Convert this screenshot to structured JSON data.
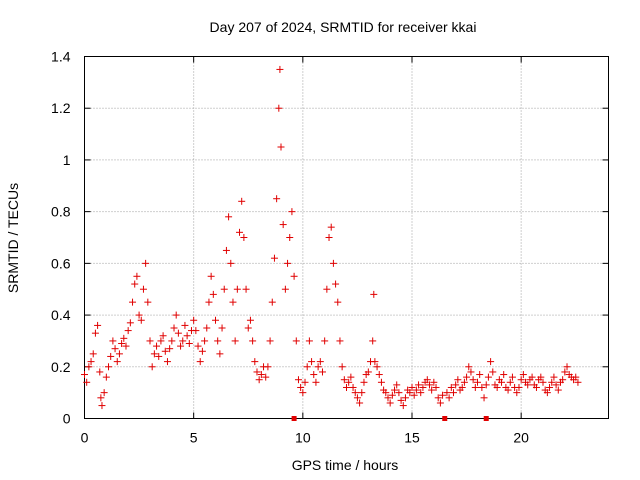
{
  "chart_data": {
    "type": "scatter",
    "title": "Day 207 of 2024, SRMTID for receiver kkai",
    "xlabel": "GPS time / hours",
    "ylabel": "SRMTID / TECUs",
    "xlim": [
      0,
      24
    ],
    "ylim": [
      0,
      1.4
    ],
    "xticks": [
      0,
      5,
      10,
      15,
      20
    ],
    "xtick_labels": [
      "0",
      "5",
      "10",
      "15",
      "20"
    ],
    "yticks": [
      0,
      0.2,
      0.4,
      0.6,
      0.8,
      1.0,
      1.2,
      1.4
    ],
    "ytick_labels": [
      "0",
      "0.2",
      "0.4",
      "0.6",
      "0.8",
      "1",
      "1.2",
      "1.4"
    ],
    "grid": true,
    "marker": "+",
    "color": "#e00000",
    "series": [
      {
        "name": "SRMTID",
        "points": [
          [
            0.0,
            0.17
          ],
          [
            0.1,
            0.14
          ],
          [
            0.2,
            0.2
          ],
          [
            0.3,
            0.22
          ],
          [
            0.4,
            0.25
          ],
          [
            0.5,
            0.33
          ],
          [
            0.6,
            0.36
          ],
          [
            0.7,
            0.18
          ],
          [
            0.75,
            0.08
          ],
          [
            0.8,
            0.05
          ],
          [
            0.9,
            0.1
          ],
          [
            1.0,
            0.16
          ],
          [
            1.1,
            0.2
          ],
          [
            1.2,
            0.24
          ],
          [
            1.3,
            0.3
          ],
          [
            1.4,
            0.27
          ],
          [
            1.5,
            0.22
          ],
          [
            1.6,
            0.25
          ],
          [
            1.7,
            0.29
          ],
          [
            1.8,
            0.31
          ],
          [
            1.9,
            0.28
          ],
          [
            2.0,
            0.34
          ],
          [
            2.1,
            0.37
          ],
          [
            2.2,
            0.45
          ],
          [
            2.3,
            0.52
          ],
          [
            2.4,
            0.55
          ],
          [
            2.5,
            0.4
          ],
          [
            2.6,
            0.38
          ],
          [
            2.7,
            0.5
          ],
          [
            2.8,
            0.6
          ],
          [
            2.9,
            0.45
          ],
          [
            3.0,
            0.3
          ],
          [
            3.1,
            0.2
          ],
          [
            3.2,
            0.25
          ],
          [
            3.3,
            0.28
          ],
          [
            3.4,
            0.24
          ],
          [
            3.5,
            0.3
          ],
          [
            3.6,
            0.32
          ],
          [
            3.7,
            0.26
          ],
          [
            3.8,
            0.22
          ],
          [
            3.9,
            0.27
          ],
          [
            4.0,
            0.3
          ],
          [
            4.1,
            0.35
          ],
          [
            4.2,
            0.4
          ],
          [
            4.3,
            0.33
          ],
          [
            4.4,
            0.28
          ],
          [
            4.5,
            0.3
          ],
          [
            4.6,
            0.36
          ],
          [
            4.7,
            0.32
          ],
          [
            4.8,
            0.29
          ],
          [
            4.9,
            0.34
          ],
          [
            5.0,
            0.38
          ],
          [
            5.1,
            0.34
          ],
          [
            5.2,
            0.28
          ],
          [
            5.3,
            0.22
          ],
          [
            5.4,
            0.26
          ],
          [
            5.5,
            0.3
          ],
          [
            5.6,
            0.35
          ],
          [
            5.7,
            0.45
          ],
          [
            5.8,
            0.55
          ],
          [
            5.9,
            0.48
          ],
          [
            6.0,
            0.38
          ],
          [
            6.1,
            0.3
          ],
          [
            6.2,
            0.25
          ],
          [
            6.3,
            0.35
          ],
          [
            6.4,
            0.5
          ],
          [
            6.5,
            0.65
          ],
          [
            6.6,
            0.78
          ],
          [
            6.7,
            0.6
          ],
          [
            6.8,
            0.45
          ],
          [
            6.9,
            0.3
          ],
          [
            7.0,
            0.5
          ],
          [
            7.1,
            0.72
          ],
          [
            7.2,
            0.84
          ],
          [
            7.3,
            0.7
          ],
          [
            7.4,
            0.5
          ],
          [
            7.5,
            0.35
          ],
          [
            7.6,
            0.38
          ],
          [
            7.7,
            0.3
          ],
          [
            7.8,
            0.22
          ],
          [
            7.9,
            0.18
          ],
          [
            8.0,
            0.15
          ],
          [
            8.1,
            0.17
          ],
          [
            8.2,
            0.2
          ],
          [
            8.3,
            0.16
          ],
          [
            8.4,
            0.2
          ],
          [
            8.5,
            0.3
          ],
          [
            8.6,
            0.45
          ],
          [
            8.7,
            0.62
          ],
          [
            8.8,
            0.85
          ],
          [
            8.9,
            1.2
          ],
          [
            8.95,
            1.35
          ],
          [
            9.0,
            1.05
          ],
          [
            9.1,
            0.75
          ],
          [
            9.2,
            0.5
          ],
          [
            9.3,
            0.6
          ],
          [
            9.4,
            0.7
          ],
          [
            9.5,
            0.8
          ],
          [
            9.6,
            0.55
          ],
          [
            9.7,
            0.3
          ],
          [
            9.8,
            0.15
          ],
          [
            9.9,
            0.12
          ],
          [
            10.0,
            0.1
          ],
          [
            10.1,
            0.14
          ],
          [
            10.2,
            0.2
          ],
          [
            10.3,
            0.3
          ],
          [
            10.4,
            0.22
          ],
          [
            10.5,
            0.17
          ],
          [
            10.6,
            0.14
          ],
          [
            10.7,
            0.2
          ],
          [
            10.8,
            0.22
          ],
          [
            10.9,
            0.18
          ],
          [
            11.0,
            0.3
          ],
          [
            11.1,
            0.5
          ],
          [
            11.2,
            0.7
          ],
          [
            11.3,
            0.74
          ],
          [
            11.4,
            0.6
          ],
          [
            11.5,
            0.52
          ],
          [
            11.6,
            0.45
          ],
          [
            11.7,
            0.3
          ],
          [
            11.8,
            0.2
          ],
          [
            11.9,
            0.15
          ],
          [
            12.0,
            0.12
          ],
          [
            12.1,
            0.14
          ],
          [
            12.2,
            0.16
          ],
          [
            12.3,
            0.12
          ],
          [
            12.4,
            0.1
          ],
          [
            12.5,
            0.08
          ],
          [
            12.6,
            0.06
          ],
          [
            12.7,
            0.1
          ],
          [
            12.8,
            0.14
          ],
          [
            12.9,
            0.17
          ],
          [
            13.0,
            0.18
          ],
          [
            13.1,
            0.22
          ],
          [
            13.2,
            0.3
          ],
          [
            13.25,
            0.48
          ],
          [
            13.3,
            0.22
          ],
          [
            13.4,
            0.2
          ],
          [
            13.5,
            0.17
          ],
          [
            13.6,
            0.14
          ],
          [
            13.7,
            0.11
          ],
          [
            13.8,
            0.1
          ],
          [
            13.9,
            0.08
          ],
          [
            14.0,
            0.06
          ],
          [
            14.1,
            0.09
          ],
          [
            14.2,
            0.11
          ],
          [
            14.3,
            0.13
          ],
          [
            14.4,
            0.1
          ],
          [
            14.5,
            0.07
          ],
          [
            14.6,
            0.05
          ],
          [
            14.7,
            0.08
          ],
          [
            14.8,
            0.11
          ],
          [
            14.9,
            0.1
          ],
          [
            15.0,
            0.12
          ],
          [
            15.1,
            0.09
          ],
          [
            15.2,
            0.11
          ],
          [
            15.3,
            0.13
          ],
          [
            15.4,
            0.1
          ],
          [
            15.5,
            0.12
          ],
          [
            15.6,
            0.14
          ],
          [
            15.7,
            0.15
          ],
          [
            15.8,
            0.13
          ],
          [
            15.9,
            0.11
          ],
          [
            16.0,
            0.14
          ],
          [
            16.1,
            0.12
          ],
          [
            16.2,
            0.08
          ],
          [
            16.3,
            0.06
          ],
          [
            16.4,
            0.09
          ],
          [
            16.6,
            0.1
          ],
          [
            16.7,
            0.08
          ],
          [
            16.8,
            0.12
          ],
          [
            16.9,
            0.1
          ],
          [
            17.0,
            0.13
          ],
          [
            17.1,
            0.15
          ],
          [
            17.2,
            0.11
          ],
          [
            17.3,
            0.12
          ],
          [
            17.4,
            0.14
          ],
          [
            17.5,
            0.16
          ],
          [
            17.6,
            0.2
          ],
          [
            17.7,
            0.18
          ],
          [
            17.8,
            0.15
          ],
          [
            17.9,
            0.12
          ],
          [
            18.0,
            0.14
          ],
          [
            18.1,
            0.17
          ],
          [
            18.2,
            0.12
          ],
          [
            18.3,
            0.08
          ],
          [
            18.4,
            0.13
          ],
          [
            18.5,
            0.16
          ],
          [
            18.6,
            0.22
          ],
          [
            18.7,
            0.18
          ],
          [
            18.8,
            0.13
          ],
          [
            18.9,
            0.12
          ],
          [
            19.0,
            0.15
          ],
          [
            19.1,
            0.14
          ],
          [
            19.2,
            0.17
          ],
          [
            19.3,
            0.12
          ],
          [
            19.4,
            0.11
          ],
          [
            19.5,
            0.14
          ],
          [
            19.6,
            0.16
          ],
          [
            19.7,
            0.12
          ],
          [
            19.8,
            0.1
          ],
          [
            19.9,
            0.12
          ],
          [
            20.0,
            0.15
          ],
          [
            20.1,
            0.17
          ],
          [
            20.2,
            0.14
          ],
          [
            20.3,
            0.13
          ],
          [
            20.4,
            0.15
          ],
          [
            20.5,
            0.16
          ],
          [
            20.6,
            0.13
          ],
          [
            20.7,
            0.12
          ],
          [
            20.8,
            0.15
          ],
          [
            20.9,
            0.16
          ],
          [
            21.0,
            0.14
          ],
          [
            21.1,
            0.11
          ],
          [
            21.2,
            0.1
          ],
          [
            21.3,
            0.12
          ],
          [
            21.4,
            0.14
          ],
          [
            21.5,
            0.16
          ],
          [
            21.6,
            0.13
          ],
          [
            21.7,
            0.11
          ],
          [
            21.8,
            0.14
          ],
          [
            21.9,
            0.15
          ],
          [
            22.0,
            0.18
          ],
          [
            22.1,
            0.2
          ],
          [
            22.2,
            0.17
          ],
          [
            22.3,
            0.16
          ],
          [
            22.4,
            0.15
          ],
          [
            22.5,
            0.16
          ],
          [
            22.6,
            0.14
          ]
        ]
      }
    ],
    "gap_markers_x": [
      9.6,
      16.5,
      18.4
    ]
  }
}
